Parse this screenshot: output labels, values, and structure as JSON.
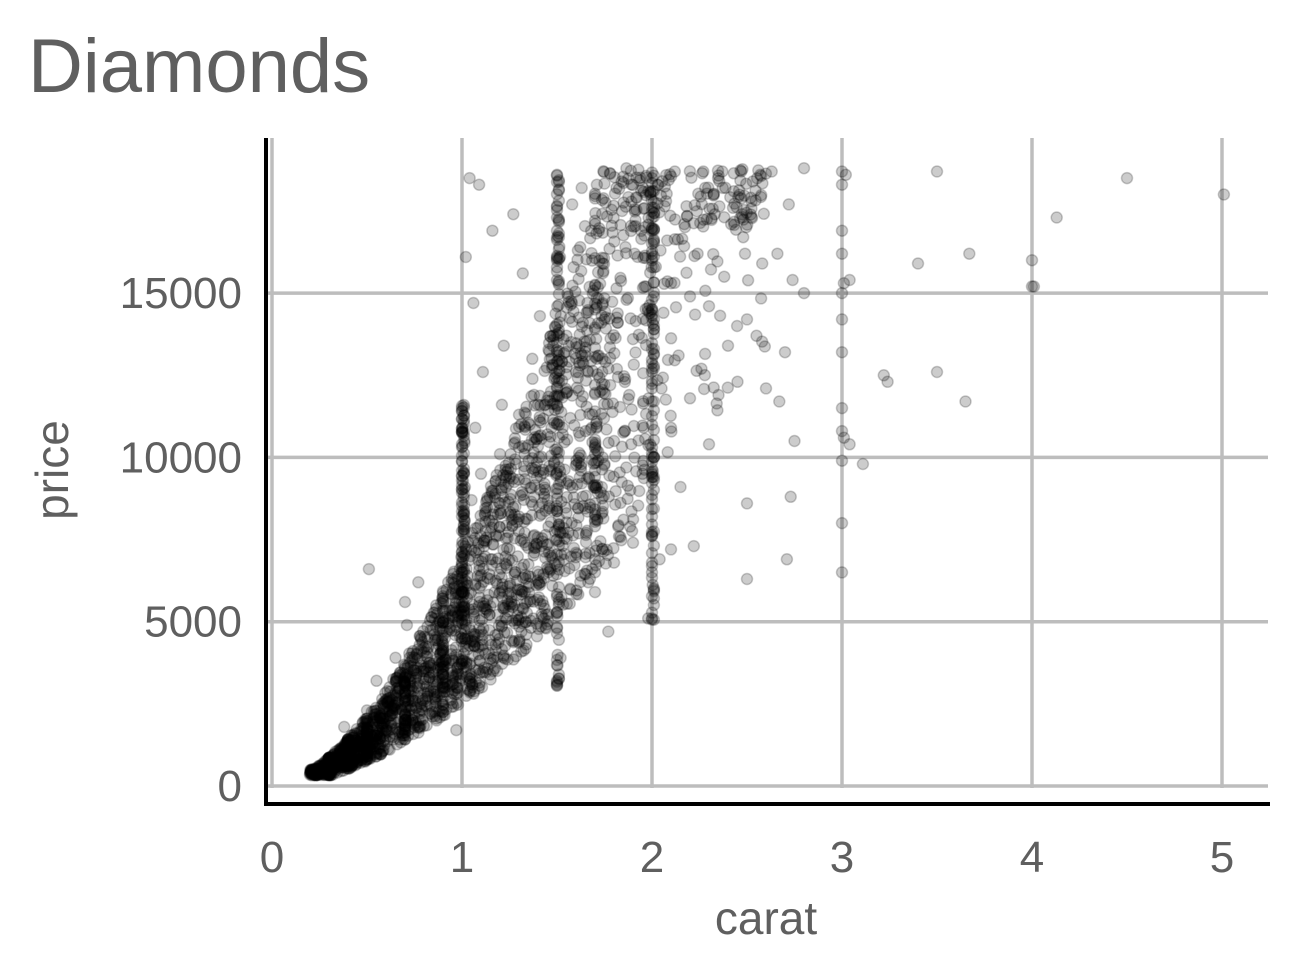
{
  "chart_data": {
    "type": "scatter",
    "title": "Diamonds",
    "xlabel": "carat",
    "ylabel": "price",
    "xlim": [
      0,
      5.1
    ],
    "ylim": [
      0,
      19000
    ],
    "x_ticks": [
      0,
      1,
      2,
      3,
      4,
      5
    ],
    "y_ticks": [
      0,
      5000,
      10000,
      15000
    ],
    "grid": true,
    "legend": "none",
    "point_color": "#000000",
    "point_alpha": 0.2,
    "series": [
      {
        "points": [
          [
            0.23,
            326
          ],
          [
            0.21,
            326
          ],
          [
            0.23,
            327
          ],
          [
            0.29,
            334
          ],
          [
            0.31,
            335
          ],
          [
            0.24,
            336
          ],
          [
            0.24,
            336
          ],
          [
            0.26,
            337
          ],
          [
            0.22,
            337
          ],
          [
            0.23,
            338
          ],
          [
            0.3,
            339
          ],
          [
            0.23,
            340
          ],
          [
            0.22,
            342
          ],
          [
            0.31,
            344
          ],
          [
            0.2,
            345
          ],
          [
            0.32,
            345
          ],
          [
            0.3,
            348
          ],
          [
            0.3,
            351
          ],
          [
            0.3,
            351
          ],
          [
            0.3,
            352
          ],
          [
            0.3,
            405
          ],
          [
            0.26,
            403
          ],
          [
            0.28,
            553
          ],
          [
            0.33,
            556
          ],
          [
            0.35,
            552
          ],
          [
            0.31,
            557
          ],
          [
            0.33,
            562
          ],
          [
            0.34,
            580
          ],
          [
            0.4,
            638
          ],
          [
            0.41,
            663
          ],
          [
            0.42,
            683
          ],
          [
            0.45,
            725
          ],
          [
            0.5,
            896
          ],
          [
            0.5,
            1200
          ],
          [
            0.52,
            1080
          ],
          [
            0.53,
            1300
          ],
          [
            0.54,
            1540
          ],
          [
            0.55,
            1710
          ],
          [
            0.57,
            1890
          ],
          [
            0.6,
            2050
          ],
          [
            0.62,
            2280
          ],
          [
            0.64,
            2420
          ],
          [
            0.66,
            2540
          ],
          [
            0.7,
            2600
          ],
          [
            0.7,
            3150
          ],
          [
            0.71,
            3400
          ],
          [
            0.72,
            2900
          ],
          [
            0.73,
            3650
          ],
          [
            0.75,
            3900
          ],
          [
            0.77,
            2700
          ],
          [
            0.8,
            3100
          ],
          [
            0.8,
            4200
          ],
          [
            0.81,
            3600
          ],
          [
            0.83,
            3300
          ],
          [
            0.88,
            3800
          ],
          [
            0.9,
            4200
          ],
          [
            0.9,
            5100
          ],
          [
            0.91,
            4500
          ],
          [
            0.92,
            4700
          ],
          [
            0.95,
            5200
          ],
          [
            0.5,
            2300
          ],
          [
            0.55,
            3200
          ],
          [
            0.6,
            1700
          ],
          [
            0.65,
            3900
          ],
          [
            0.51,
            6600
          ],
          [
            0.7,
            5600
          ],
          [
            0.77,
            6200
          ],
          [
            0.71,
            4900
          ],
          [
            0.4,
            1000
          ],
          [
            0.38,
            1800
          ],
          [
            0.36,
            1100
          ],
          [
            0.32,
            700
          ],
          [
            0.27,
            500
          ],
          [
            1.0,
            4500
          ],
          [
            1.0,
            5200
          ],
          [
            1.0,
            6800
          ],
          [
            1.0,
            8200
          ],
          [
            1.0,
            9600
          ],
          [
            1.0,
            11400
          ],
          [
            1.0,
            10800
          ],
          [
            1.01,
            3600
          ],
          [
            1.01,
            5900
          ],
          [
            1.01,
            7800
          ],
          [
            1.02,
            4900
          ],
          [
            1.03,
            6400
          ],
          [
            1.05,
            7200
          ],
          [
            1.05,
            8700
          ],
          [
            1.07,
            10900
          ],
          [
            1.1,
            4700
          ],
          [
            1.1,
            6100
          ],
          [
            1.1,
            9500
          ],
          [
            1.12,
            5400
          ],
          [
            1.12,
            8300
          ],
          [
            1.15,
            6900
          ],
          [
            1.18,
            7600
          ],
          [
            1.2,
            5900
          ],
          [
            1.2,
            8600
          ],
          [
            1.2,
            10100
          ],
          [
            1.21,
            11600
          ],
          [
            1.23,
            9400
          ],
          [
            1.25,
            7200
          ],
          [
            1.28,
            6500
          ],
          [
            1.3,
            8200
          ],
          [
            1.3,
            10300
          ],
          [
            1.33,
            7700
          ],
          [
            1.35,
            9900
          ],
          [
            1.38,
            8800
          ],
          [
            1.4,
            11600
          ],
          [
            1.42,
            7300
          ],
          [
            1.45,
            10700
          ],
          [
            0.98,
            3400
          ],
          [
            0.96,
            2900
          ],
          [
            0.97,
            1700
          ],
          [
            1.04,
            2900
          ],
          [
            1.06,
            14700
          ],
          [
            1.02,
            16100
          ],
          [
            1.04,
            18500
          ],
          [
            1.09,
            18300
          ],
          [
            1.16,
            16900
          ],
          [
            1.27,
            17400
          ],
          [
            1.32,
            15600
          ],
          [
            1.22,
            13400
          ],
          [
            1.11,
            12600
          ],
          [
            1.37,
            13000
          ],
          [
            1.41,
            14300
          ],
          [
            1.48,
            12800
          ],
          [
            1.5,
            3100
          ],
          [
            1.5,
            4800
          ],
          [
            1.5,
            6700
          ],
          [
            1.5,
            8900
          ],
          [
            1.5,
            11000
          ],
          [
            1.5,
            13200
          ],
          [
            1.5,
            15400
          ],
          [
            1.5,
            17300
          ],
          [
            1.5,
            18600
          ],
          [
            1.51,
            5600
          ],
          [
            1.51,
            9700
          ],
          [
            1.51,
            12400
          ],
          [
            1.51,
            16700
          ],
          [
            1.52,
            7700
          ],
          [
            1.52,
            14300
          ],
          [
            1.53,
            10700
          ],
          [
            1.55,
            8300
          ],
          [
            1.55,
            13700
          ],
          [
            1.57,
            11200
          ],
          [
            1.6,
            7100
          ],
          [
            1.6,
            12600
          ],
          [
            1.61,
            16300
          ],
          [
            1.62,
            9400
          ],
          [
            1.65,
            10800
          ],
          [
            1.66,
            14700
          ],
          [
            1.7,
            5900
          ],
          [
            1.7,
            8600
          ],
          [
            1.7,
            11400
          ],
          [
            1.7,
            14500
          ],
          [
            1.7,
            17200
          ],
          [
            1.71,
            18300
          ],
          [
            1.72,
            13100
          ],
          [
            1.74,
            15900
          ],
          [
            1.75,
            9800
          ],
          [
            1.78,
            12200
          ],
          [
            1.8,
            6800
          ],
          [
            1.8,
            10500
          ],
          [
            1.82,
            14100
          ],
          [
            1.85,
            8100
          ],
          [
            1.86,
            16400
          ],
          [
            1.88,
            11900
          ],
          [
            1.9,
            7400
          ],
          [
            1.9,
            13600
          ],
          [
            1.92,
            17900
          ],
          [
            1.95,
            9500
          ],
          [
            1.96,
            15200
          ],
          [
            1.98,
            5100
          ],
          [
            1.77,
            4700
          ],
          [
            1.63,
            18200
          ],
          [
            1.58,
            17700
          ],
          [
            1.68,
            16900
          ],
          [
            2.0,
            5100
          ],
          [
            2.0,
            6500
          ],
          [
            2.0,
            8200
          ],
          [
            2.0,
            10300
          ],
          [
            2.0,
            12600
          ],
          [
            2.0,
            14800
          ],
          [
            2.0,
            16900
          ],
          [
            2.0,
            18500
          ],
          [
            2.01,
            9400
          ],
          [
            2.01,
            11700
          ],
          [
            2.01,
            13900
          ],
          [
            2.01,
            17600
          ],
          [
            2.02,
            15800
          ],
          [
            2.03,
            18300
          ],
          [
            2.04,
            6900
          ],
          [
            2.05,
            12100
          ],
          [
            2.06,
            14400
          ],
          [
            2.08,
            16600
          ],
          [
            2.1,
            7200
          ],
          [
            2.1,
            10900
          ],
          [
            2.1,
            15300
          ],
          [
            2.12,
            18700
          ],
          [
            2.14,
            13100
          ],
          [
            2.15,
            9100
          ],
          [
            2.17,
            17100
          ],
          [
            2.2,
            11800
          ],
          [
            2.2,
            14900
          ],
          [
            2.22,
            7300
          ],
          [
            2.24,
            16200
          ],
          [
            2.26,
            12700
          ],
          [
            2.28,
            18200
          ],
          [
            2.3,
            10400
          ],
          [
            2.3,
            14600
          ],
          [
            2.33,
            17400
          ],
          [
            2.35,
            11900
          ],
          [
            2.38,
            15500
          ],
          [
            2.4,
            13400
          ],
          [
            2.43,
            18100
          ],
          [
            2.45,
            12300
          ],
          [
            2.48,
            16700
          ],
          [
            2.5,
            6300
          ],
          [
            2.5,
            8600
          ],
          [
            2.5,
            14200
          ],
          [
            2.52,
            17900
          ],
          [
            2.55,
            13700
          ],
          [
            2.58,
            15900
          ],
          [
            2.6,
            12100
          ],
          [
            2.63,
            18700
          ],
          [
            2.66,
            16200
          ],
          [
            2.7,
            13200
          ],
          [
            2.72,
            17700
          ],
          [
            2.75,
            10500
          ],
          [
            2.8,
            15000
          ],
          [
            2.71,
            6900
          ],
          [
            2.73,
            8800
          ],
          [
            2.74,
            15400
          ],
          [
            2.67,
            11700
          ],
          [
            2.57,
            18600
          ],
          [
            2.47,
            18700
          ],
          [
            2.37,
            18700
          ],
          [
            2.27,
            18700
          ],
          [
            2.8,
            18800
          ],
          [
            3.0,
            6500
          ],
          [
            3.0,
            8000
          ],
          [
            3.0,
            9900
          ],
          [
            3.0,
            10800
          ],
          [
            3.0,
            11500
          ],
          [
            3.0,
            13200
          ],
          [
            3.0,
            14200
          ],
          [
            3.0,
            15000
          ],
          [
            3.0,
            16200
          ],
          [
            3.0,
            16900
          ],
          [
            3.0,
            18300
          ],
          [
            3.0,
            18700
          ],
          [
            3.01,
            10600
          ],
          [
            3.01,
            15300
          ],
          [
            3.02,
            18600
          ],
          [
            3.04,
            10400
          ],
          [
            3.04,
            15400
          ],
          [
            3.11,
            9800
          ],
          [
            3.22,
            12500
          ],
          [
            3.24,
            12300
          ],
          [
            3.4,
            15900
          ],
          [
            3.5,
            12600
          ],
          [
            3.5,
            18700
          ],
          [
            3.65,
            11700
          ],
          [
            3.67,
            16200
          ],
          [
            4.0,
            15200
          ],
          [
            4.01,
            15200
          ],
          [
            4.0,
            16000
          ],
          [
            4.13,
            17300
          ],
          [
            4.5,
            18500
          ],
          [
            5.01,
            18000
          ]
        ]
      }
    ]
  }
}
